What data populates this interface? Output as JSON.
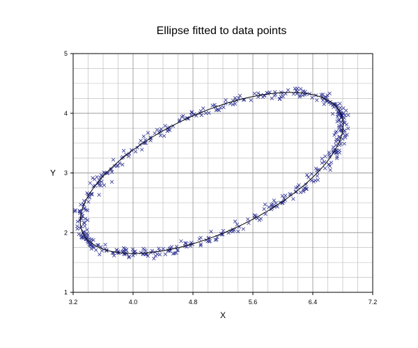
{
  "chart_data": {
    "type": "scatter",
    "title": "Ellipse fitted to data points",
    "xlabel": "X",
    "ylabel": "Y",
    "xlim": [
      3.2,
      7.2
    ],
    "ylim": [
      1,
      5
    ],
    "x_ticks": [
      3.2,
      4.0,
      4.8,
      5.6,
      6.4,
      7.2
    ],
    "x_tick_labels": [
      "3.2",
      "4.0",
      "4.8",
      "5.6",
      "6.4",
      "7.2"
    ],
    "y_ticks": [
      1,
      2,
      3,
      4,
      5
    ],
    "y_tick_labels": [
      "1",
      "2",
      "3",
      "4",
      "5"
    ],
    "grid": true,
    "marker": "x",
    "marker_color": "#2b2f8f",
    "fit_line_color": "#000000",
    "grid_color": "#b4b4b4",
    "ellipse_fit": {
      "center": [
        5.05,
        3.0
      ],
      "semi_major": 2.0,
      "semi_minor": 0.95,
      "angle_deg": 33
    },
    "points_count": 500,
    "noise_sd": 0.045
  }
}
